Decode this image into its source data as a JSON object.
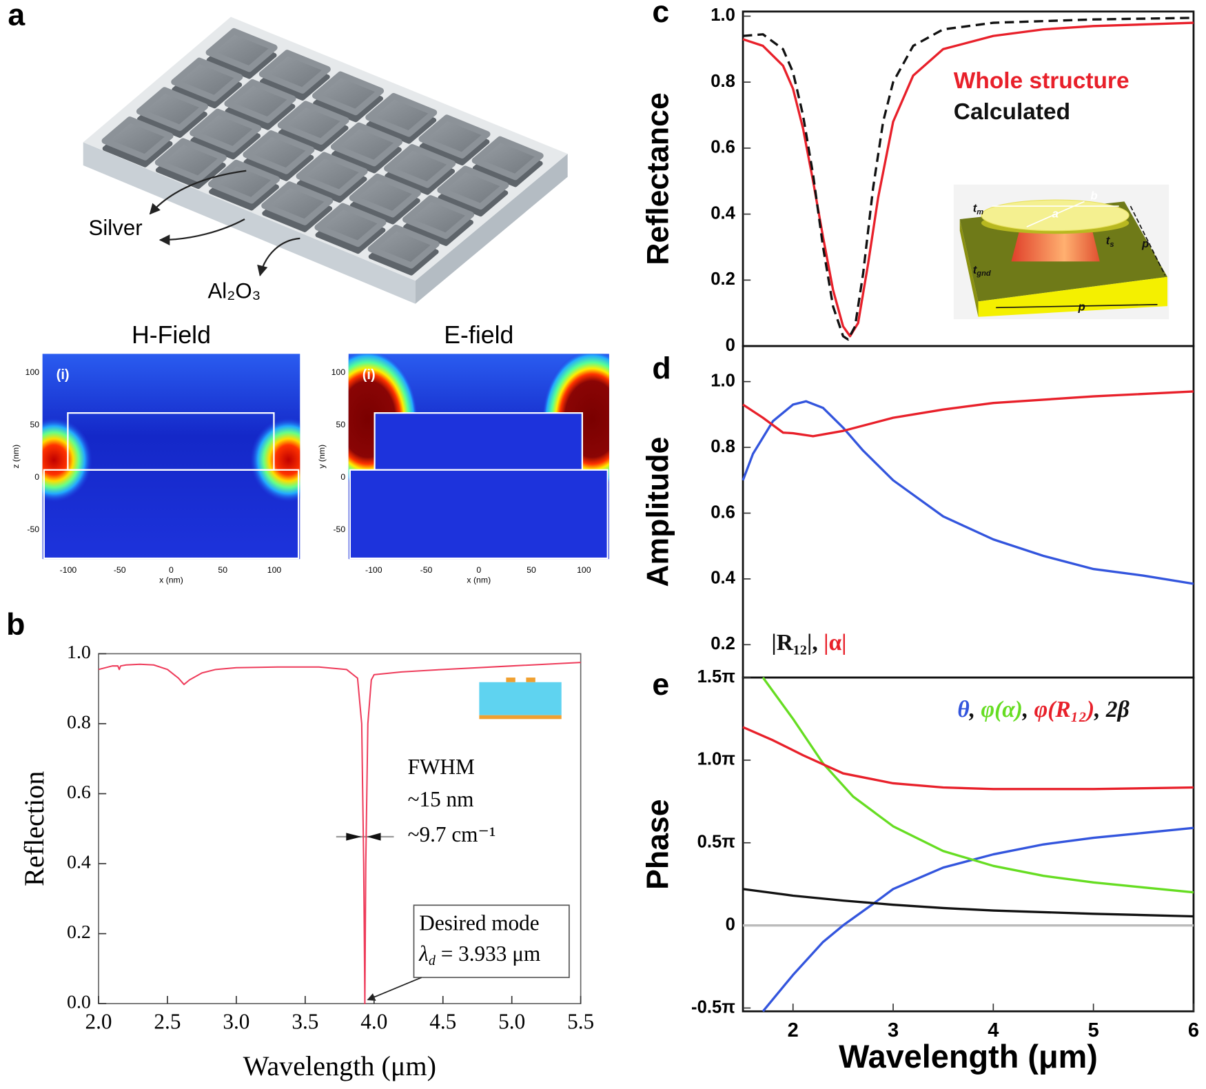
{
  "panel_letters": [
    "a",
    "b",
    "c",
    "d",
    "e"
  ],
  "illustration": {
    "labels": [
      "Silver",
      "Al₂O₃"
    ]
  },
  "chart_data": [
    {
      "type": "field_map",
      "title": "H-Field",
      "label": "(i)",
      "xlabel": "x (nm)",
      "ylabel": "z (nm)",
      "xlim": [
        -125,
        125
      ],
      "ylim": [
        -78,
        118
      ],
      "xticks": [
        -100,
        -50,
        0,
        50,
        100
      ],
      "yticks": [
        100,
        50,
        0,
        -50
      ]
    },
    {
      "type": "field_map",
      "title": "E-field",
      "label": "(i)",
      "xlabel": "x (nm)",
      "ylabel": "y (nm)",
      "xlim": [
        -124,
        124
      ],
      "ylim": [
        -78,
        118
      ],
      "xticks": [
        -100,
        -50,
        0,
        50,
        100
      ],
      "yticks": [
        100,
        50,
        0,
        -50
      ]
    },
    {
      "type": "line",
      "xlabel": "Wavelength (μm)",
      "ylabel": "Reflection",
      "xlim": [
        2.0,
        5.5
      ],
      "ylim": [
        0,
        1
      ],
      "xticks": [
        {
          "value": 2,
          "label": "2.0"
        },
        2.5,
        {
          "value": 3,
          "label": "3.0"
        },
        3.5,
        {
          "value": 4,
          "label": "4.0"
        },
        4.5,
        {
          "value": 5,
          "label": "5.0"
        },
        5.5
      ],
      "yticks": [
        {
          "value": 0,
          "label": "0.0"
        },
        0.2,
        0.4,
        0.6,
        0.8,
        {
          "value": 1,
          "label": "1.0"
        }
      ],
      "series": [
        {
          "color": "#ee3b5a",
          "x": [
            2.0,
            2.1,
            2.14,
            2.15,
            2.16,
            2.2,
            2.3,
            2.4,
            2.5,
            2.58,
            2.62,
            2.66,
            2.75,
            2.85,
            3.0,
            3.3,
            3.6,
            3.8,
            3.88,
            3.91,
            3.925,
            3.933,
            3.94,
            3.955,
            3.98,
            4.0,
            4.2,
            4.5,
            5.0,
            5.5
          ],
          "values": [
            0.955,
            0.965,
            0.965,
            0.955,
            0.965,
            0.968,
            0.97,
            0.968,
            0.955,
            0.93,
            0.912,
            0.925,
            0.945,
            0.955,
            0.96,
            0.962,
            0.962,
            0.955,
            0.93,
            0.8,
            0.4,
            0.0,
            0.4,
            0.8,
            0.925,
            0.94,
            0.948,
            0.955,
            0.965,
            0.975
          ]
        }
      ],
      "annotations": [
        "FWHM",
        "~15 nm",
        "~9.7 cm⁻¹",
        "Desired mode"
      ],
      "mode_label": {
        "base": "λ",
        "sub": "d",
        "text": " = 3.933 μm"
      }
    },
    {
      "type": "line",
      "ylabel": "Reflectance",
      "xlim": [
        1.5,
        6
      ],
      "ylim": [
        0,
        1.014
      ],
      "yticks": [
        0,
        0.2,
        0.4,
        0.6,
        0.8,
        {
          "value": 1,
          "label": "1.0"
        }
      ],
      "series": [
        {
          "name": "Whole structure",
          "color": "#e8202a",
          "x": [
            1.5,
            1.7,
            1.9,
            2.0,
            2.1,
            2.2,
            2.3,
            2.4,
            2.5,
            2.57,
            2.65,
            2.75,
            2.85,
            3.0,
            3.2,
            3.5,
            4.0,
            4.5,
            5.0,
            6.0
          ],
          "values": [
            0.93,
            0.91,
            0.85,
            0.78,
            0.66,
            0.5,
            0.33,
            0.17,
            0.06,
            0.03,
            0.07,
            0.25,
            0.45,
            0.68,
            0.82,
            0.9,
            0.94,
            0.96,
            0.97,
            0.98
          ]
        },
        {
          "name": "Calculated",
          "color": "#111111",
          "dash": true,
          "x": [
            1.5,
            1.7,
            1.9,
            2.0,
            2.1,
            2.2,
            2.3,
            2.4,
            2.5,
            2.55,
            2.62,
            2.7,
            2.8,
            2.9,
            3.0,
            3.2,
            3.5,
            4.0,
            5.0,
            6.0
          ],
          "values": [
            0.94,
            0.945,
            0.9,
            0.83,
            0.7,
            0.52,
            0.3,
            0.12,
            0.03,
            0.02,
            0.06,
            0.22,
            0.48,
            0.68,
            0.8,
            0.91,
            0.96,
            0.98,
            0.99,
            0.995
          ]
        }
      ],
      "inset_labels": [
        {
          "base": "t",
          "sub": "m"
        },
        {
          "base": "b"
        },
        {
          "base": "a"
        },
        {
          "base": "t",
          "sub": "s"
        },
        {
          "base": "p"
        },
        {
          "base": "t",
          "sub": "gnd"
        },
        {
          "base": "p"
        }
      ]
    },
    {
      "type": "line",
      "ylabel": "Amplitude",
      "xlim": [
        1.5,
        6
      ],
      "ylim": [
        0.1,
        1.108
      ],
      "yticks": [
        0.2,
        0.4,
        0.6,
        0.8,
        {
          "value": 1,
          "label": "1.0"
        }
      ],
      "legend_separator": ", ",
      "series": [
        {
          "name": "|R₁₂|",
          "color": "#3355dd",
          "legend_color": "#111111",
          "x": [
            1.5,
            1.6,
            1.8,
            2.0,
            2.13,
            2.3,
            2.5,
            2.7,
            3.0,
            3.5,
            4.0,
            4.5,
            5.0,
            5.5,
            6.0
          ],
          "values": [
            0.7,
            0.78,
            0.88,
            0.93,
            0.94,
            0.92,
            0.86,
            0.79,
            0.7,
            0.59,
            0.52,
            0.47,
            0.43,
            0.41,
            0.385
          ]
        },
        {
          "name": "|α|",
          "color": "#e8202a",
          "x": [
            1.5,
            1.7,
            1.9,
            2.0,
            2.2,
            2.5,
            3.0,
            3.5,
            4.0,
            5.0,
            6.0
          ],
          "values": [
            0.93,
            0.89,
            0.845,
            0.843,
            0.834,
            0.85,
            0.89,
            0.915,
            0.935,
            0.955,
            0.97
          ]
        }
      ]
    },
    {
      "type": "line",
      "ylabel": "Phase",
      "xlabel": "Wavelength (μm)",
      "xlim": [
        1.5,
        6
      ],
      "ylim": [
        -0.52,
        1.5
      ],
      "xticks": [
        2,
        3,
        4,
        5,
        6
      ],
      "yticks": [
        {
          "value": 1.5,
          "label": "1.5π"
        },
        {
          "value": 1,
          "label": "1.0π"
        },
        {
          "value": 0.5,
          "label": "0.5π"
        },
        0,
        {
          "value": -0.5,
          "label": "-0.5π"
        }
      ],
      "reference_line": 0,
      "legend_separator": ", ",
      "series": [
        {
          "name": "θ",
          "color": "#3355dd",
          "x": [
            1.7,
            2.0,
            2.3,
            2.5,
            2.8,
            3.0,
            3.5,
            4.0,
            4.5,
            5.0,
            5.5,
            6.0
          ],
          "values": [
            -0.52,
            -0.3,
            -0.1,
            0.0,
            0.13,
            0.22,
            0.35,
            0.43,
            0.49,
            0.53,
            0.56,
            0.59
          ]
        },
        {
          "name": "φ(α)",
          "color": "#66dd22",
          "x": [
            1.7,
            2.0,
            2.3,
            2.6,
            3.0,
            3.5,
            4.0,
            4.5,
            5.0,
            5.5,
            6.0
          ],
          "values": [
            1.5,
            1.25,
            0.98,
            0.78,
            0.6,
            0.45,
            0.36,
            0.3,
            0.26,
            0.23,
            0.2
          ]
        },
        {
          "name": "φ(R₁₂)",
          "color": "#e8202a",
          "x": [
            1.5,
            1.8,
            2.1,
            2.5,
            3.0,
            3.5,
            4.0,
            5.0,
            6.0
          ],
          "values": [
            1.2,
            1.12,
            1.03,
            0.92,
            0.86,
            0.835,
            0.825,
            0.825,
            0.835
          ]
        },
        {
          "name": "2β",
          "color": "#111111",
          "x": [
            1.5,
            2.0,
            2.5,
            3.0,
            3.5,
            4.0,
            5.0,
            6.0
          ],
          "values": [
            0.22,
            0.18,
            0.15,
            0.125,
            0.105,
            0.09,
            0.07,
            0.055
          ]
        }
      ]
    }
  ]
}
